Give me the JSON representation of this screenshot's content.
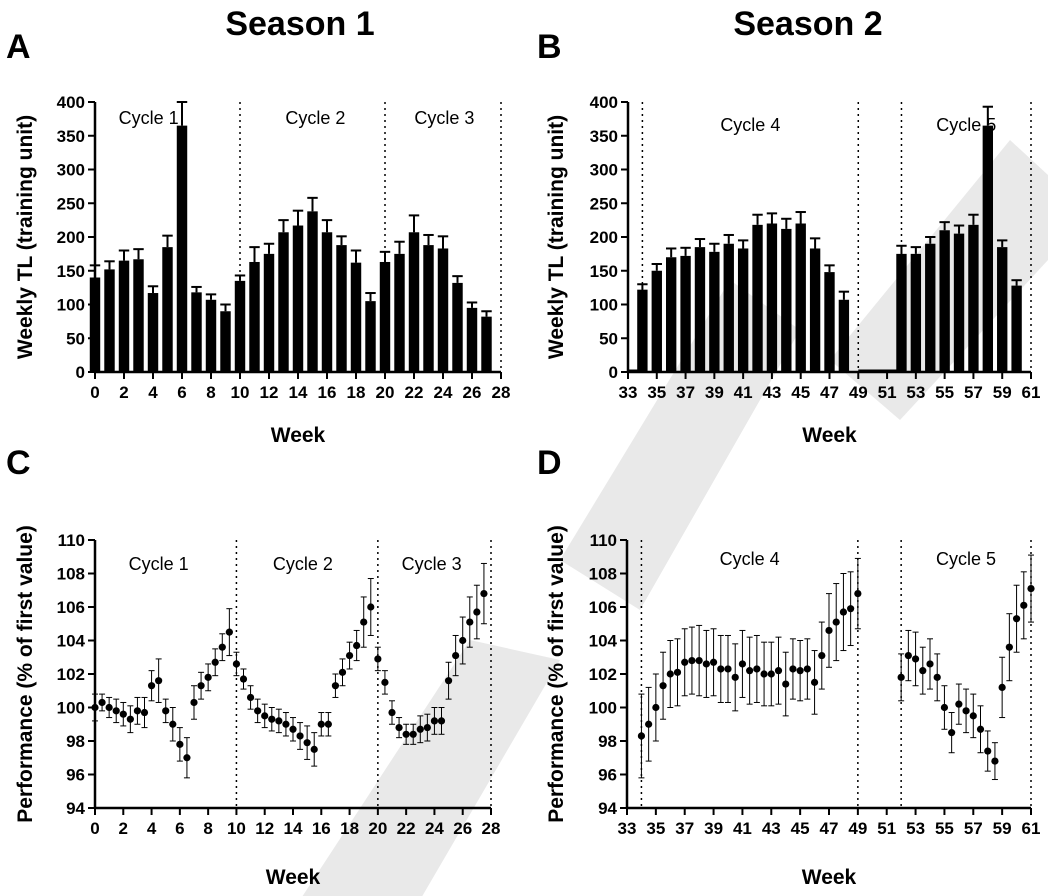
{
  "titles": {
    "season1": "Season 1",
    "season2": "Season 2"
  },
  "panels": {
    "a": "A",
    "b": "B",
    "c": "C",
    "d": "D"
  },
  "chart_data": [
    {
      "panel": "A",
      "type": "bar",
      "ylabel": "Weekly TL (training unit)",
      "xlabel": "Week",
      "xlim": [
        0,
        28
      ],
      "ylim": [
        0,
        400
      ],
      "xticks": [
        0,
        2,
        4,
        6,
        8,
        10,
        12,
        14,
        16,
        18,
        20,
        22,
        24,
        26,
        28
      ],
      "yticks": [
        0,
        50,
        100,
        150,
        200,
        250,
        300,
        350,
        400
      ],
      "separators": [
        10,
        20,
        28
      ],
      "cycles": [
        {
          "label": "Cycle 1",
          "x": 3.7
        },
        {
          "label": "Cycle 2",
          "x": 15.2
        },
        {
          "label": "Cycle 3",
          "x": 24.1
        }
      ],
      "x": [
        0,
        1,
        2,
        3,
        4,
        5,
        6,
        7,
        8,
        9,
        10,
        11,
        12,
        13,
        14,
        15,
        16,
        17,
        18,
        19,
        20,
        21,
        22,
        23,
        24,
        25,
        26,
        27
      ],
      "values": [
        140,
        152,
        165,
        167,
        117,
        185,
        365,
        118,
        107,
        90,
        135,
        163,
        175,
        207,
        217,
        238,
        207,
        188,
        162,
        105,
        163,
        175,
        207,
        188,
        183,
        132,
        95,
        82
      ],
      "errors": [
        18,
        12,
        15,
        15,
        10,
        17,
        35,
        8,
        8,
        10,
        8,
        22,
        15,
        18,
        22,
        20,
        18,
        13,
        18,
        12,
        15,
        18,
        25,
        15,
        18,
        10,
        8,
        8
      ]
    },
    {
      "panel": "B",
      "type": "bar",
      "ylabel": "Weekly TL (training unit)",
      "xlabel": "Week",
      "xlim": [
        33,
        61
      ],
      "ylim": [
        0,
        400
      ],
      "xticks": [
        33,
        35,
        37,
        39,
        41,
        43,
        45,
        47,
        49,
        51,
        53,
        55,
        57,
        59,
        61
      ],
      "yticks": [
        0,
        50,
        100,
        150,
        200,
        250,
        300,
        350,
        400
      ],
      "separators": [
        34,
        49,
        52,
        61
      ],
      "cycles": [
        {
          "label": "Cycle 4",
          "x": 41.5
        },
        {
          "label": "Cycle 5",
          "x": 56.5
        }
      ],
      "x": [
        34,
        35,
        36,
        37,
        38,
        39,
        40,
        41,
        42,
        43,
        44,
        45,
        46,
        47,
        48,
        52,
        53,
        54,
        55,
        56,
        57,
        58,
        59,
        60
      ],
      "values": [
        122,
        150,
        170,
        172,
        185,
        178,
        190,
        183,
        218,
        220,
        212,
        220,
        183,
        148,
        107,
        175,
        175,
        190,
        210,
        205,
        218,
        365,
        185,
        128
      ],
      "errors": [
        8,
        10,
        13,
        12,
        12,
        12,
        13,
        12,
        15,
        15,
        15,
        17,
        15,
        10,
        12,
        12,
        10,
        10,
        12,
        12,
        15,
        28,
        10,
        8
      ],
      "zero_line": [
        [
          33,
          34
        ],
        [
          49,
          52
        ]
      ]
    },
    {
      "panel": "C",
      "type": "scatter",
      "ylabel": "Performance (% of first value)",
      "xlabel": "Week",
      "xlim": [
        0,
        28
      ],
      "ylim": [
        94,
        110
      ],
      "xticks": [
        0,
        2,
        4,
        6,
        8,
        10,
        12,
        14,
        16,
        18,
        20,
        22,
        24,
        26,
        28
      ],
      "yticks": [
        94,
        96,
        98,
        100,
        102,
        104,
        106,
        108,
        110
      ],
      "separators": [
        10,
        20,
        28
      ],
      "cycles": [
        {
          "label": "Cycle 1",
          "x": 4.5
        },
        {
          "label": "Cycle 2",
          "x": 14.7
        },
        {
          "label": "Cycle 3",
          "x": 23.8
        }
      ],
      "x": [
        0,
        0.5,
        1,
        1.5,
        2,
        2.5,
        3,
        3.5,
        4,
        4.5,
        5,
        5.5,
        6,
        6.5,
        7,
        7.5,
        8,
        8.5,
        9,
        9.5,
        10,
        10.5,
        11,
        11.5,
        12,
        12.5,
        13,
        13.5,
        14,
        14.5,
        15,
        15.5,
        16,
        16.5,
        17,
        17.5,
        18,
        18.5,
        19,
        19.5,
        20,
        20.5,
        21,
        21.5,
        22,
        22.5,
        23,
        23.5,
        24,
        24.5,
        25,
        25.5,
        26,
        26.5,
        27,
        27.5
      ],
      "values": [
        100,
        100.3,
        100,
        99.8,
        99.6,
        99.3,
        99.8,
        99.7,
        101.3,
        101.6,
        99.8,
        99,
        97.8,
        97,
        100.3,
        101.3,
        101.8,
        102.7,
        103.6,
        104.5,
        102.6,
        101.7,
        100.6,
        99.8,
        99.5,
        99.3,
        99.2,
        99,
        98.7,
        98.3,
        97.9,
        97.5,
        99,
        99,
        101.3,
        102.1,
        103.1,
        103.7,
        105.1,
        106,
        102.9,
        101.5,
        99.7,
        98.8,
        98.4,
        98.4,
        98.7,
        98.8,
        99.2,
        99.2,
        101.6,
        103.1,
        104,
        105.1,
        105.7,
        106.8
      ],
      "errors": [
        0.8,
        0.5,
        0.6,
        0.7,
        0.7,
        0.8,
        0.8,
        0.9,
        0.9,
        1.3,
        0.7,
        1,
        1,
        1.2,
        1,
        0.8,
        0.8,
        0.8,
        0.8,
        1.4,
        0.7,
        0.6,
        0.7,
        0.7,
        0.7,
        0.7,
        0.7,
        0.7,
        0.7,
        0.8,
        1,
        1,
        0.7,
        0.7,
        0.7,
        0.8,
        0.8,
        0.9,
        1.5,
        1.7,
        0.7,
        0.7,
        0.7,
        0.6,
        0.6,
        0.6,
        0.8,
        0.8,
        0.8,
        0.8,
        1.1,
        1.2,
        1.4,
        1.5,
        1.6,
        1.8
      ]
    },
    {
      "panel": "D",
      "type": "scatter",
      "ylabel": "Performance (% of first value)",
      "xlabel": "Week",
      "xlim": [
        33,
        61
      ],
      "ylim": [
        94,
        110
      ],
      "xticks": [
        33,
        35,
        37,
        39,
        41,
        43,
        45,
        47,
        49,
        51,
        53,
        55,
        57,
        59,
        61
      ],
      "yticks": [
        94,
        96,
        98,
        100,
        102,
        104,
        106,
        108,
        110
      ],
      "separators": [
        34,
        49,
        52,
        61
      ],
      "cycles": [
        {
          "label": "Cycle 4",
          "x": 41.5
        },
        {
          "label": "Cycle 5",
          "x": 56.5
        }
      ],
      "x": [
        34,
        34.5,
        35,
        35.5,
        36,
        36.5,
        37,
        37.5,
        38,
        38.5,
        39,
        39.5,
        40,
        40.5,
        41,
        41.5,
        42,
        42.5,
        43,
        43.5,
        44,
        44.5,
        45,
        45.5,
        46,
        46.5,
        47,
        47.5,
        48,
        48.5,
        49,
        52,
        52.5,
        53,
        53.5,
        54,
        54.5,
        55,
        55.5,
        56,
        56.5,
        57,
        57.5,
        58,
        58.5,
        59,
        59.5,
        60,
        60.5,
        61
      ],
      "values": [
        98.3,
        99,
        100,
        101.3,
        102,
        102.1,
        102.7,
        102.8,
        102.8,
        102.6,
        102.7,
        102.3,
        102.3,
        101.8,
        102.6,
        102.2,
        102.3,
        102,
        102,
        102.2,
        101.4,
        102.3,
        102.2,
        102.3,
        101.5,
        103.1,
        104.6,
        105.1,
        105.7,
        105.9,
        106.8,
        101.8,
        103.1,
        102.9,
        102.2,
        102.6,
        101.8,
        100,
        98.5,
        100.2,
        99.8,
        99.5,
        98.7,
        97.4,
        96.8,
        101.2,
        103.6,
        105.3,
        106.1,
        107.1
      ],
      "errors": [
        2.5,
        2.2,
        2,
        2,
        2,
        2,
        2,
        2,
        2.1,
        2,
        2,
        2,
        2,
        2,
        2,
        2,
        2,
        1.9,
        1.9,
        2,
        1.9,
        1.8,
        1.8,
        1.8,
        1.9,
        2,
        2.2,
        2.3,
        2.3,
        2.2,
        2.1,
        1.4,
        1.5,
        1.6,
        1.4,
        1.5,
        1.4,
        1.3,
        1.2,
        1.2,
        1.3,
        1.3,
        1.4,
        1.2,
        1.1,
        1.8,
        2,
        2,
        2,
        2
      ]
    }
  ]
}
